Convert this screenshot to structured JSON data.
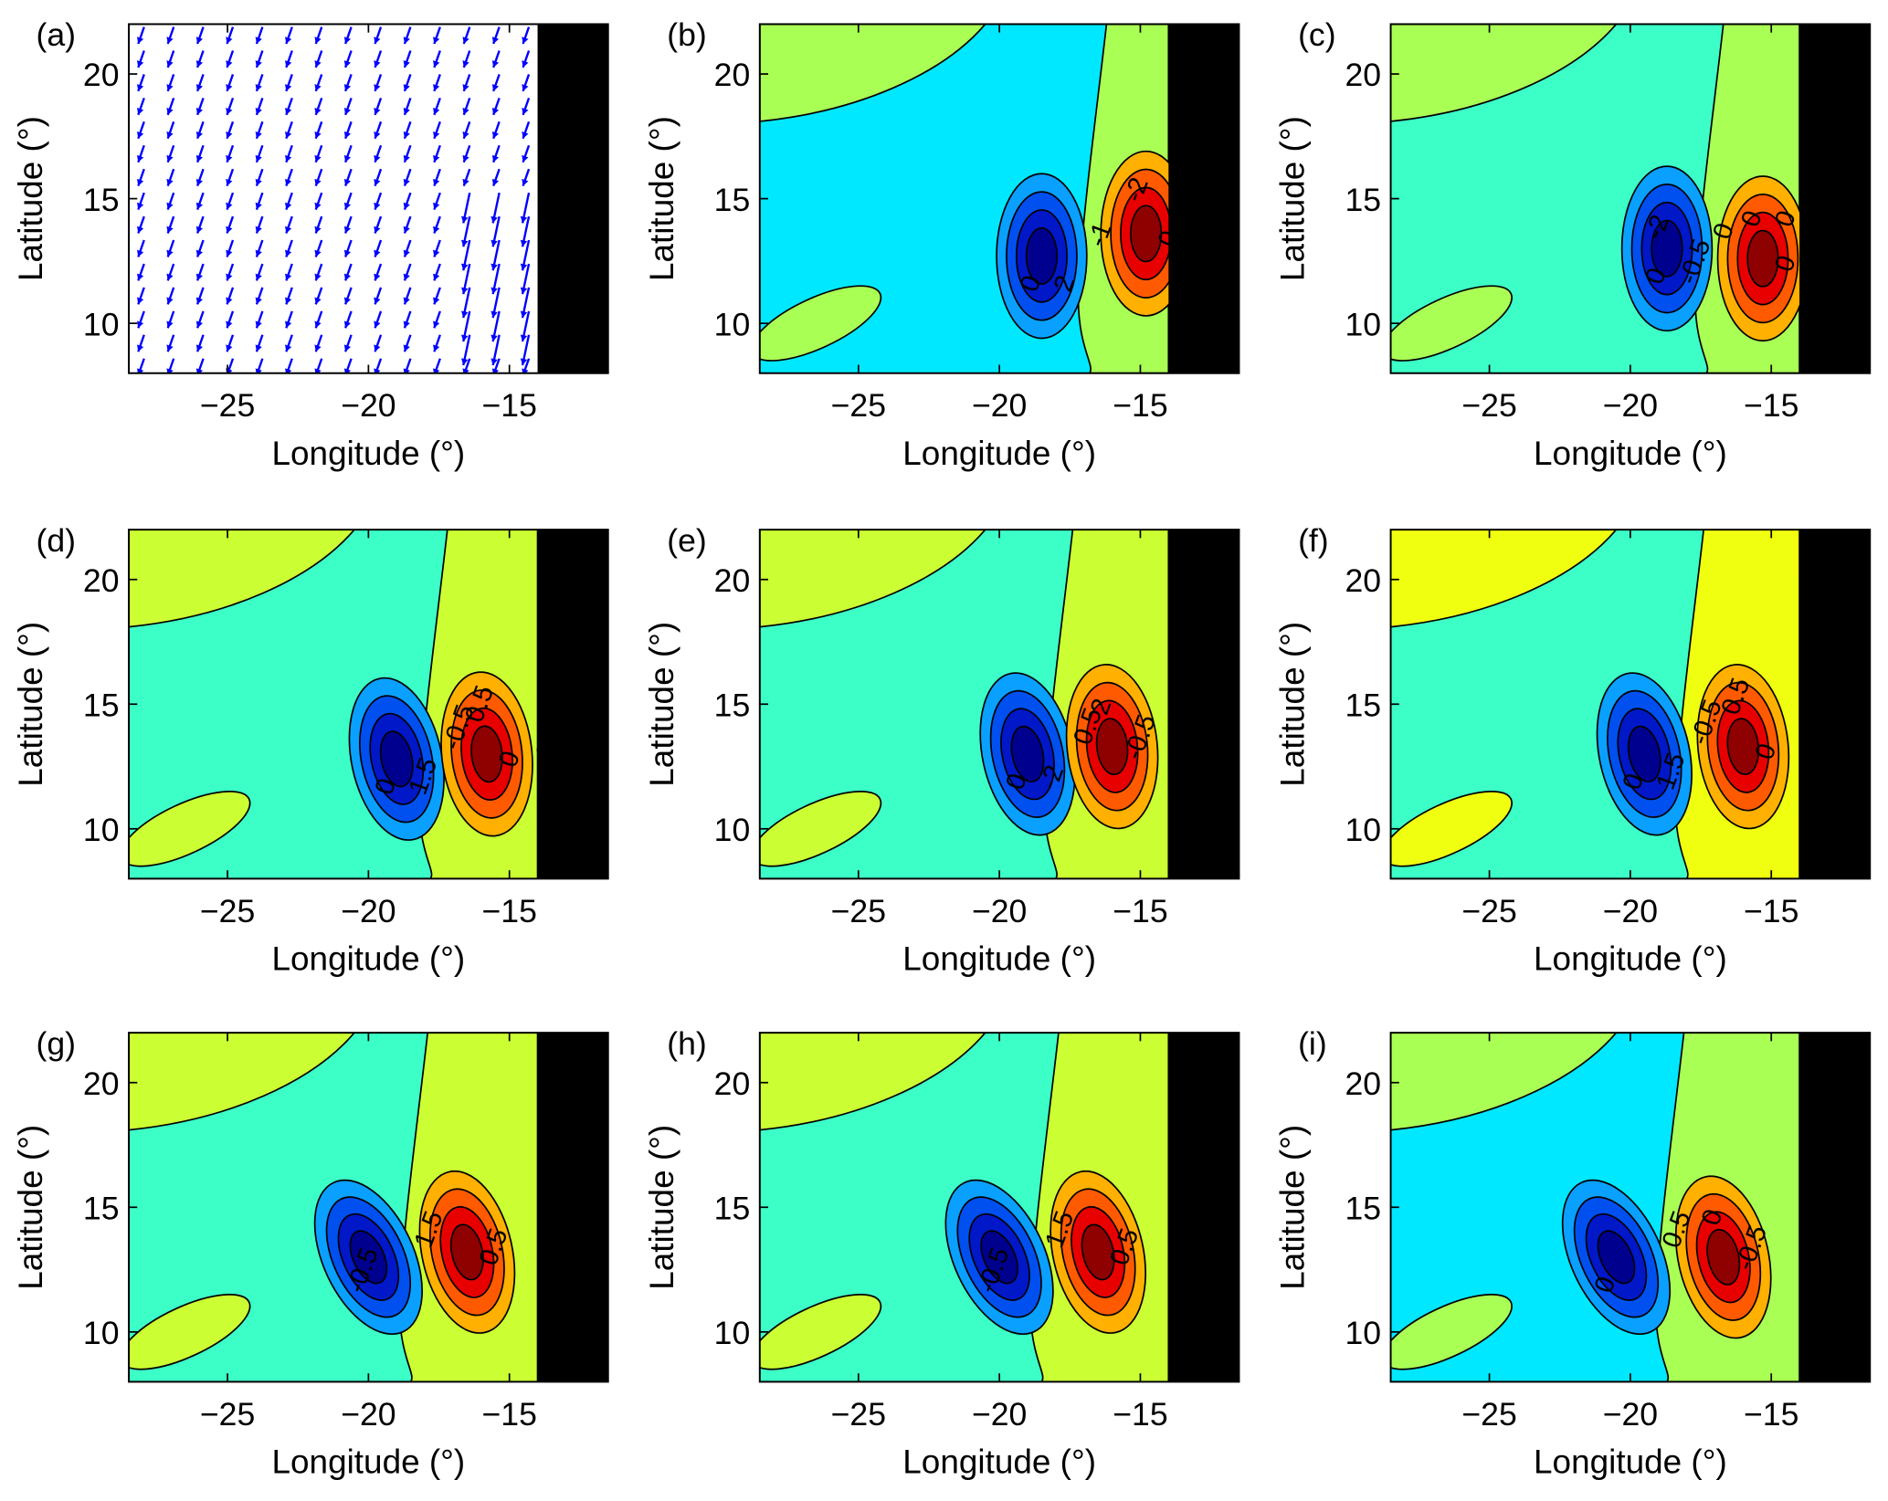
{
  "chart_data": {
    "type": "contour",
    "xlabel": "Longitude (°)",
    "ylabel": "Latitude (°)",
    "xlim": [
      -28.5,
      -11.5
    ],
    "ylim": [
      8,
      22
    ],
    "xticks": [
      -25,
      -20,
      -15
    ],
    "yticks": [
      10,
      15,
      20
    ],
    "xtick_labels": [
      "−25",
      "−20",
      "−15"
    ],
    "ytick_labels": [
      "10",
      "15",
      "20"
    ],
    "land_mask_lon_min": -14,
    "levels": [
      -2,
      -1.5,
      -1,
      -0.5,
      0,
      0.5,
      1,
      1.5,
      2
    ],
    "colors": {
      "neg": [
        "#0aa0ff",
        "#0050f0",
        "#0018c8",
        "#00008f"
      ],
      "pos": [
        "#ffb000",
        "#ff5a00",
        "#e80000",
        "#8f0000"
      ],
      "bg_cyan": "#00e8ff",
      "bg_aqua": "#3cffc8",
      "bg_yellowgreen": "#ccff33",
      "bg_lightgreen": "#aaff55",
      "bg_yellow": "#f0ff10",
      "mask": "#000000",
      "vector": "#0000ff"
    },
    "panels": [
      {
        "tag": "(a)",
        "kind": "vectors",
        "u": -0.35,
        "v": -1.0,
        "strong_lon": [
          -17.5,
          -14.5
        ],
        "strong_lat": [
          9,
          15.5
        ]
      },
      {
        "tag": "(b)",
        "kind": "contour",
        "bg": "bg_cyan",
        "band": "bg_lightgreen",
        "neg": [
          -18.5,
          12.7
        ],
        "pos": [
          -14.8,
          13.6
        ],
        "nlev": 3,
        "labels": [
          "0",
          "0",
          "-1",
          "-2",
          "2",
          "0"
        ]
      },
      {
        "tag": "(c)",
        "kind": "contour",
        "bg": "bg_aqua",
        "band": "bg_lightgreen",
        "neg": [
          -18.7,
          13
        ],
        "pos": [
          -15.3,
          12.6
        ],
        "nlev": 4,
        "labels": [
          "0",
          "0",
          "0",
          "0",
          "-0.5",
          "1.5",
          "-2",
          "0"
        ]
      },
      {
        "tag": "(d)",
        "kind": "contour",
        "bg": "bg_aqua",
        "band": "bg_yellowgreen",
        "neg": [
          -19,
          12.8
        ],
        "pos": [
          -15.8,
          13
        ],
        "nlev": 4,
        "labels": [
          "0",
          "0",
          "-0.5",
          "0.5",
          "1.5",
          "-2"
        ]
      },
      {
        "tag": "(e)",
        "kind": "contour",
        "bg": "bg_aqua",
        "band": "bg_yellowgreen",
        "neg": [
          -19,
          13
        ],
        "pos": [
          -16,
          13.3
        ],
        "nlev": 4,
        "labels": [
          "0",
          "-0.5",
          "0.5",
          "2",
          "-2"
        ]
      },
      {
        "tag": "(f)",
        "kind": "contour",
        "bg": "bg_aqua",
        "band": "bg_yellow",
        "neg": [
          -19.5,
          13
        ],
        "pos": [
          -16,
          13.3
        ],
        "nlev": 4,
        "labels": [
          "0",
          "0",
          "-0.5",
          "0.5",
          "1.5"
        ]
      },
      {
        "tag": "(g)",
        "kind": "contour",
        "bg": "bg_aqua",
        "band": "bg_yellowgreen",
        "neg": [
          -20,
          13
        ],
        "pos": [
          -16.5,
          13.2
        ],
        "nlev": 3,
        "labels": [
          "-0.5",
          "0.5",
          "1.5"
        ]
      },
      {
        "tag": "(h)",
        "kind": "contour",
        "bg": "bg_aqua",
        "band": "bg_yellowgreen",
        "neg": [
          -20,
          13
        ],
        "pos": [
          -16.5,
          13.2
        ],
        "nlev": 3,
        "labels": [
          "-0.5",
          "0.5",
          "1.5"
        ]
      },
      {
        "tag": "(i)",
        "kind": "contour",
        "bg": "bg_cyan",
        "band": "bg_lightgreen",
        "neg": [
          -20.5,
          13
        ],
        "pos": [
          -16.7,
          13
        ],
        "nlev": 3,
        "labels": [
          "0",
          "-0.5",
          "0.5",
          "0"
        ]
      }
    ]
  }
}
